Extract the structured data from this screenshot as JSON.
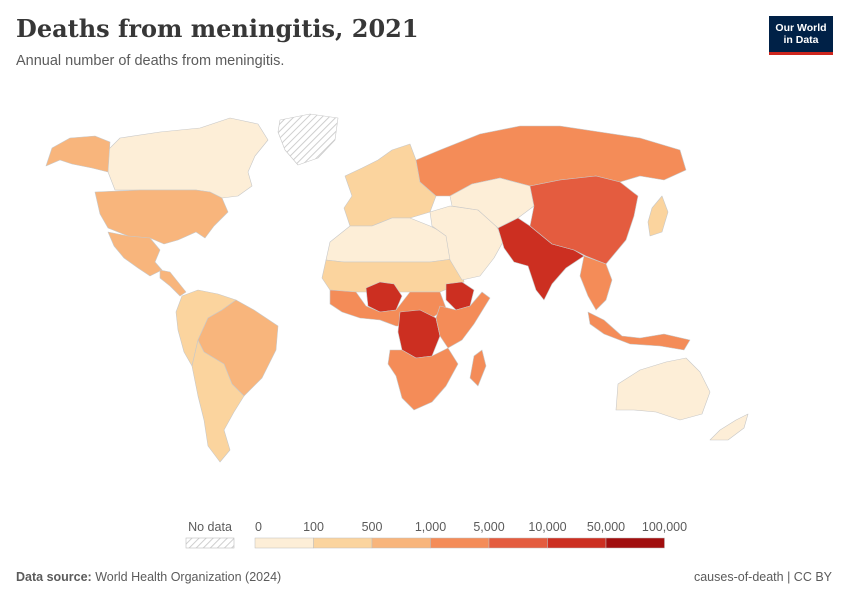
{
  "header": {
    "title": "Deaths from meningitis, 2021",
    "subtitle": "Annual number of deaths from meningitis."
  },
  "logo": {
    "line1": "Our World",
    "line2": "in Data"
  },
  "legend": {
    "no_data_label": "No data",
    "bins": [
      {
        "label": "0",
        "color": "#fdeed7"
      },
      {
        "label": "100",
        "color": "#fbd49e"
      },
      {
        "label": "500",
        "color": "#f8b57c"
      },
      {
        "label": "1,000",
        "color": "#f48c58"
      },
      {
        "label": "5,000",
        "color": "#e45c3f"
      },
      {
        "label": "10,000",
        "color": "#cc2f21"
      },
      {
        "label": "50,000",
        "color": "#a10e0e"
      }
    ],
    "last_label": "100,000"
  },
  "colors": {
    "none": "#fdeed7",
    "low": "#fbd49e",
    "mid": "#f8b57c",
    "high": "#f48c58",
    "vhigh": "#e45c3f",
    "extreme": "#cc2f21",
    "max": "#a10e0e"
  },
  "map_regions": [
    {
      "name": "canada",
      "level": "none"
    },
    {
      "name": "alaska",
      "level": "mid"
    },
    {
      "name": "greenland",
      "level": "nodata"
    },
    {
      "name": "usa",
      "level": "mid"
    },
    {
      "name": "mexico",
      "level": "mid"
    },
    {
      "name": "central-america",
      "level": "mid"
    },
    {
      "name": "south-america-north",
      "level": "low"
    },
    {
      "name": "brazil",
      "level": "mid"
    },
    {
      "name": "south-america-south",
      "level": "low"
    },
    {
      "name": "europe",
      "level": "low"
    },
    {
      "name": "russia",
      "level": "high"
    },
    {
      "name": "north-africa",
      "level": "none"
    },
    {
      "name": "sahel",
      "level": "low"
    },
    {
      "name": "nigeria",
      "level": "extreme"
    },
    {
      "name": "central-africa",
      "level": "high"
    },
    {
      "name": "dr-congo",
      "level": "extreme"
    },
    {
      "name": "ethiopia",
      "level": "extreme"
    },
    {
      "name": "east-africa",
      "level": "high"
    },
    {
      "name": "southern-africa",
      "level": "high"
    },
    {
      "name": "madagascar",
      "level": "high"
    },
    {
      "name": "middle-east",
      "level": "none"
    },
    {
      "name": "central-asia",
      "level": "none"
    },
    {
      "name": "pakistan-india",
      "level": "extreme"
    },
    {
      "name": "china",
      "level": "vhigh"
    },
    {
      "name": "southeast-asia",
      "level": "high"
    },
    {
      "name": "indonesia",
      "level": "high"
    },
    {
      "name": "japan",
      "level": "low"
    },
    {
      "name": "australia",
      "level": "none"
    },
    {
      "name": "new-zealand",
      "level": "none"
    }
  ],
  "footer": {
    "source_label": "Data source:",
    "source_text": "World Health Organization (2024)",
    "right_text": "causes-of-death | CC BY"
  }
}
